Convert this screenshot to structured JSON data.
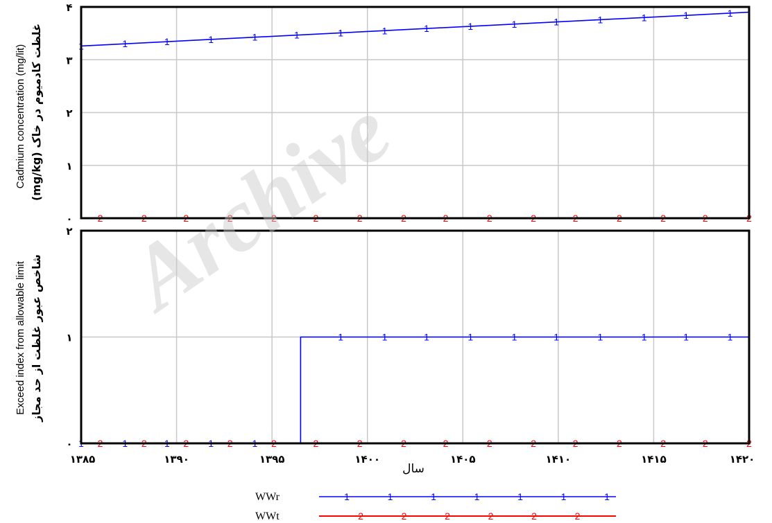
{
  "chart_data": [
    {
      "type": "line",
      "panel": "top",
      "ylabel_en": "Cadmium concentration (mg/lit)",
      "ylabel_fa": "(mg/kg) غلظت کادمیوم در خاک",
      "y_ticks": [
        0,
        1,
        2,
        3,
        4
      ],
      "y_tick_labels": [
        "۰",
        "۱",
        "۲",
        "۳",
        "۴"
      ],
      "ylim": [
        0,
        4
      ],
      "xlim": [
        1385,
        1420
      ],
      "grid": true,
      "series": [
        {
          "name": "WWr",
          "marker": "1",
          "color": "#0000ff",
          "x": [
            1385,
            1420
          ],
          "y": [
            3.26,
            3.9
          ],
          "marker_x": [
            1385,
            1387.3,
            1389.5,
            1391.8,
            1394.1,
            1396.3,
            1398.6,
            1400.9,
            1403.1,
            1405.4,
            1407.7,
            1409.9,
            1412.2,
            1414.5,
            1416.7,
            1419
          ]
        },
        {
          "name": "WWt",
          "marker": "2",
          "color": "#ff0000",
          "x": [
            1385,
            1420
          ],
          "y": [
            0,
            0
          ],
          "marker_x": [
            1386,
            1388.3,
            1390.5,
            1392.8,
            1395.1,
            1397.3,
            1399.6,
            1401.9,
            1404.1,
            1406.4,
            1408.7,
            1410.9,
            1413.2,
            1415.5,
            1417.7,
            1420
          ]
        }
      ]
    },
    {
      "type": "line",
      "panel": "bottom",
      "ylabel_en": "Exceed index from allowable limit",
      "ylabel_fa": "شاخص عبور غلظت از حد مجاز",
      "y_ticks": [
        0,
        1,
        2
      ],
      "y_tick_labels": [
        "۰",
        "۱",
        "۲"
      ],
      "ylim": [
        0,
        2
      ],
      "xlim": [
        1385,
        1420
      ],
      "x_ticks": [
        1385,
        1390,
        1395,
        1400,
        1405,
        1410,
        1415,
        1420
      ],
      "x_tick_labels": [
        "۱۳۸۵",
        "۱۳۹۰",
        "۱۳۹۵",
        "۱۴۰۰",
        "۱۴۰۵",
        "۱۴۱۰",
        "۱۴۱۵",
        "۱۴۲۰"
      ],
      "xlabel": "سال",
      "grid": true,
      "series": [
        {
          "name": "WWr",
          "marker": "1",
          "color": "#0000ff",
          "x": [
            1385,
            1396.5,
            1396.5,
            1420
          ],
          "y": [
            0,
            0,
            1,
            1
          ],
          "marker_x": [
            1385,
            1387.3,
            1389.5,
            1391.8,
            1394.1,
            1398.6,
            1400.9,
            1403.1,
            1405.4,
            1407.7,
            1409.9,
            1412.2,
            1414.5,
            1416.7,
            1419
          ]
        },
        {
          "name": "WWt",
          "marker": "2",
          "color": "#ff0000",
          "x": [
            1385,
            1420
          ],
          "y": [
            0,
            0
          ],
          "marker_x": [
            1386,
            1388.3,
            1390.5,
            1392.8,
            1395.1,
            1397.3,
            1399.6,
            1401.9,
            1404.1,
            1406.4,
            1408.7,
            1410.9,
            1413.2,
            1415.5,
            1417.7,
            1420
          ]
        }
      ]
    }
  ],
  "legend": [
    {
      "name": "WWr",
      "marker": "1",
      "color": "#0000ff"
    },
    {
      "name": "WWt",
      "marker": "2",
      "color": "#ff0000"
    }
  ],
  "watermark": "Archive"
}
